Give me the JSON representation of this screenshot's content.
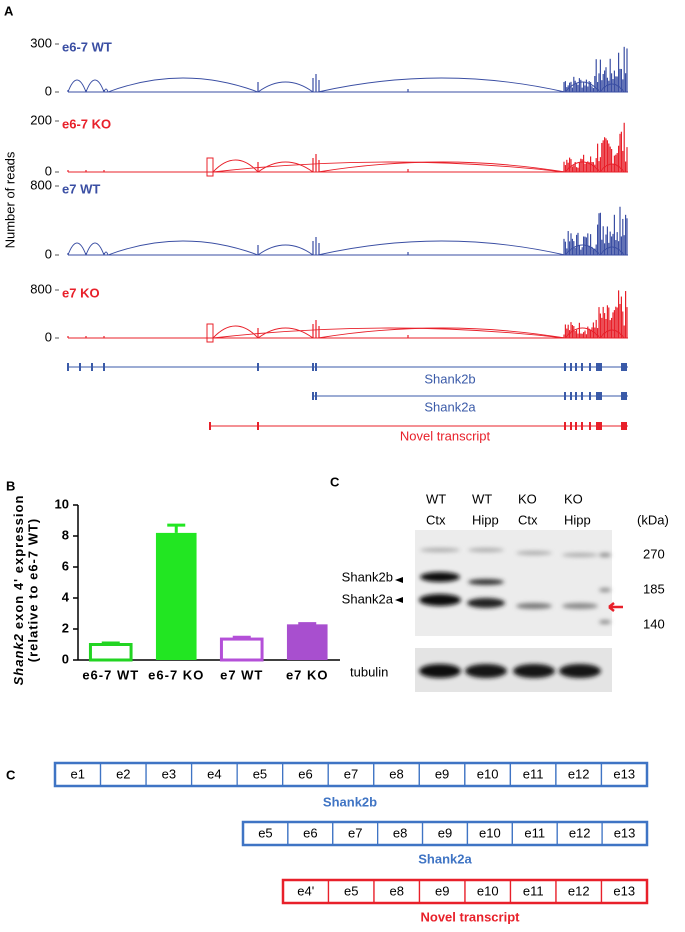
{
  "panel_labels": [
    "A",
    "B",
    "C",
    "C"
  ],
  "sashimi": {
    "y_label": "Number of reads",
    "tracks": [
      {
        "label": "e6-7 WT",
        "color": "#3a4ea3",
        "knockout": false,
        "yticks": [
          0,
          300
        ]
      },
      {
        "label": "e6-7 KO",
        "color": "#e8202a",
        "knockout": true,
        "yticks": [
          0,
          200
        ]
      },
      {
        "label": "e7 WT",
        "color": "#3a4ea3",
        "knockout": false,
        "yticks": [
          0,
          800
        ]
      },
      {
        "label": "e7 KO",
        "color": "#e8202a",
        "knockout": true,
        "yticks": [
          0,
          800
        ]
      }
    ],
    "transcripts": [
      {
        "name": "Shank2b",
        "color": "#3a5aa8"
      },
      {
        "name": "Shank2a",
        "color": "#3a5aa8"
      },
      {
        "name": "Novel transcript",
        "color": "#e8202a"
      }
    ]
  },
  "chart_data": {
    "type": "bar",
    "y_label_gene": "Shank2",
    "y_label": "exon 4' expression",
    "y_label_sub": "(relative to e6-7 WT)",
    "categories": [
      "e6-7 WT",
      "e6-7 KO",
      "e7 WT",
      "e7 KO"
    ],
    "values": [
      1.0,
      8.2,
      1.35,
      2.3
    ],
    "errors": [
      0.1,
      0.5,
      0.12,
      0.05
    ],
    "colors": [
      "#22d422",
      "#22e622",
      "#b450d8",
      "#a84fcf"
    ],
    "hollow": [
      true,
      false,
      true,
      false
    ],
    "ylim": [
      0,
      10
    ],
    "yticks": [
      0,
      2,
      4,
      6,
      8,
      10
    ]
  },
  "blot": {
    "lanes": [
      [
        "WT",
        "Ctx"
      ],
      [
        "WT",
        "Hipp"
      ],
      [
        "KO",
        "Ctx"
      ],
      [
        "KO",
        "Hipp"
      ]
    ],
    "unit": "(kDa)",
    "markers": [
      270,
      185,
      140
    ],
    "bands": [
      "Shank2b",
      "Shank2a"
    ],
    "loading": "tubulin"
  },
  "exon_diagram": {
    "rows": [
      {
        "name": "Shank2b",
        "color": "#3f74c4",
        "exons": [
          "e1",
          "e2",
          "e3",
          "e4",
          "e5",
          "e6",
          "e7",
          "e8",
          "e9",
          "e10",
          "e11",
          "e12",
          "e13"
        ]
      },
      {
        "name": "Shank2a",
        "color": "#3f74c4",
        "exons": [
          "e5",
          "e6",
          "e7",
          "e8",
          "e9",
          "e10",
          "e11",
          "e12",
          "e13"
        ]
      },
      {
        "name": "Novel transcript",
        "color": "#e8202a",
        "exons": [
          "e4'",
          "e5",
          "e8",
          "e9",
          "e10",
          "e11",
          "e12",
          "e13"
        ]
      }
    ]
  }
}
